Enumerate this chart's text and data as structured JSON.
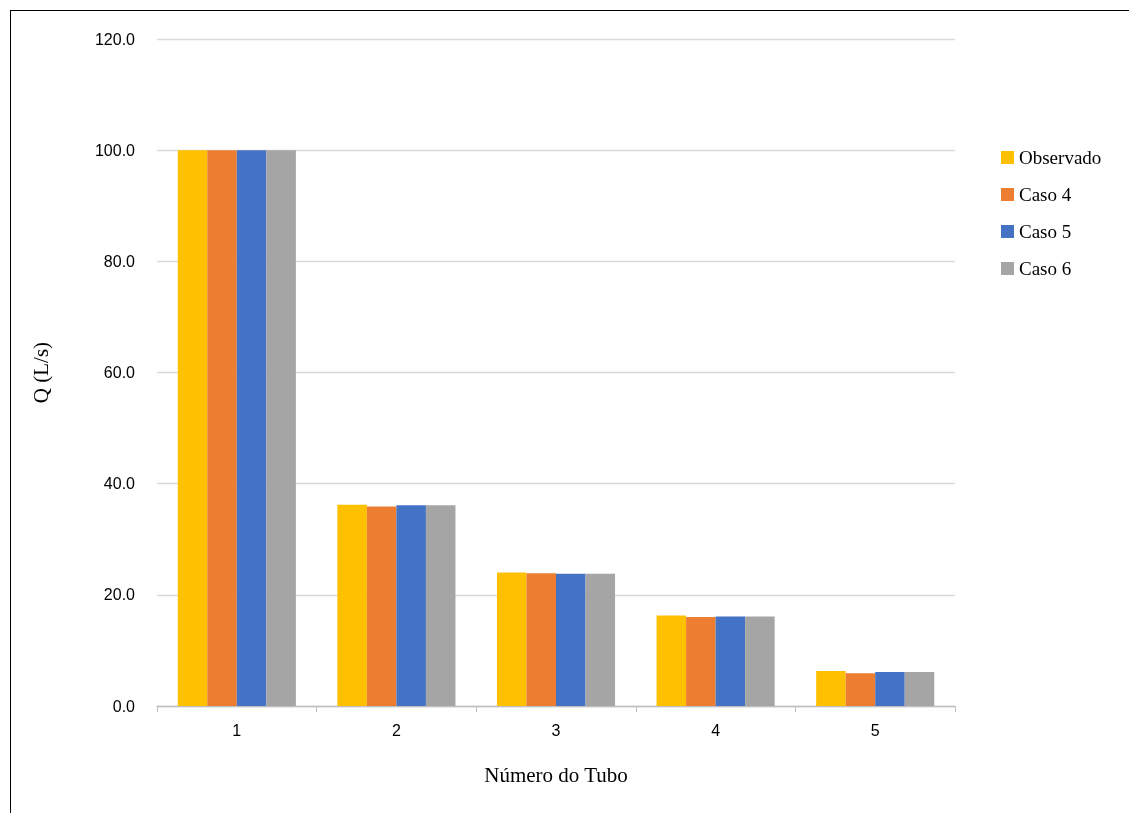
{
  "chart_data": {
    "type": "bar",
    "categories": [
      "1",
      "2",
      "3",
      "4",
      "5"
    ],
    "xlabel": "Número do Tubo",
    "ylabel": "Q (L/s)",
    "series": [
      {
        "name": "Observado",
        "color": "#ffc000",
        "values": [
          100.0,
          36.2,
          24.0,
          16.3,
          6.3
        ]
      },
      {
        "name": "Caso 4",
        "color": "#ed7d31",
        "values": [
          100.0,
          35.9,
          23.9,
          16.0,
          5.9
        ]
      },
      {
        "name": "Caso 5",
        "color": "#4472c4",
        "values": [
          100.0,
          36.1,
          23.8,
          16.1,
          6.1
        ]
      },
      {
        "name": "Caso 6",
        "color": "#a5a5a5",
        "values": [
          100.0,
          36.1,
          23.8,
          16.1,
          6.1
        ]
      }
    ],
    "ylim": [
      0,
      120
    ],
    "yticks": [
      {
        "value": 0,
        "label": "0.0"
      },
      {
        "value": 20,
        "label": "20.0"
      },
      {
        "value": 40,
        "label": "40.0"
      },
      {
        "value": 60,
        "label": "60.0"
      },
      {
        "value": 80,
        "label": "80.0"
      },
      {
        "value": 100,
        "label": "100.0"
      },
      {
        "value": 120,
        "label": "120.0"
      }
    ],
    "grid": "y",
    "legend": "right"
  }
}
